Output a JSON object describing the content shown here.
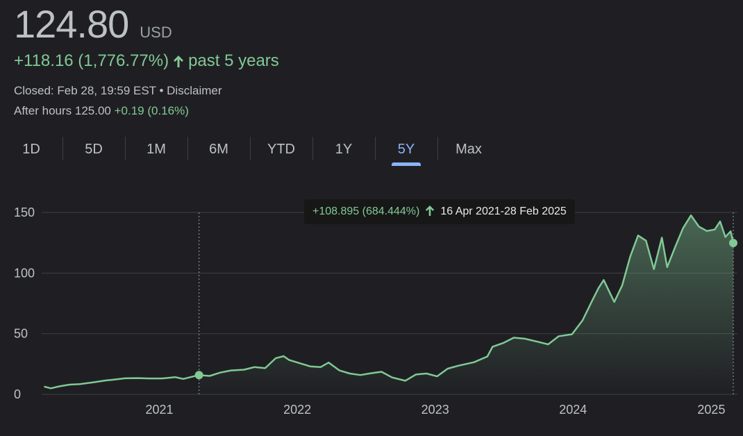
{
  "quote": {
    "price": "124.80",
    "currency": "USD",
    "change": "+118.16 (1,776.77%)",
    "change_period": "past 5 years",
    "closed_text": "Closed: Feb 28, 19:59 EST • Disclaimer",
    "after_hours_label": "After hours 125.00",
    "after_hours_change": "+0.19 (0.16%)"
  },
  "tabs": [
    {
      "label": "1D"
    },
    {
      "label": "5D"
    },
    {
      "label": "1M"
    },
    {
      "label": "6M"
    },
    {
      "label": "YTD"
    },
    {
      "label": "1Y"
    },
    {
      "label": "5Y",
      "active": true
    },
    {
      "label": "Max"
    }
  ],
  "tooltip": {
    "change": "+108.895 (684.444%)",
    "range": "16 Apr 2021-28 Feb 2025"
  },
  "colors": {
    "positive": "#81c995",
    "line": "#81c995",
    "active_tab": "#8ab4f8",
    "background": "#1f1f23"
  },
  "chart_data": {
    "type": "area",
    "title": "",
    "xlabel": "",
    "ylabel": "",
    "ylim": [
      0,
      150
    ],
    "yticks": [
      0,
      50,
      100,
      150
    ],
    "xticks": [
      "2021",
      "2022",
      "2023",
      "2024",
      "2025"
    ],
    "grid": true,
    "x_range": [
      "2020-03-01",
      "2025-02-28"
    ],
    "selection": {
      "start": "2021-04-16",
      "end": "2025-02-28",
      "start_value": 15.9,
      "end_value": 124.8
    },
    "series": [
      {
        "points": [
          [
            "2020-03-02",
            6.4
          ],
          [
            "2020-03-20",
            5.0
          ],
          [
            "2020-04-10",
            6.5
          ],
          [
            "2020-05-08",
            8.0
          ],
          [
            "2020-06-05",
            8.5
          ],
          [
            "2020-07-03",
            9.6
          ],
          [
            "2020-08-14",
            11.5
          ],
          [
            "2020-09-04",
            12.2
          ],
          [
            "2020-10-02",
            13.2
          ],
          [
            "2020-11-06",
            13.4
          ],
          [
            "2020-12-04",
            13.1
          ],
          [
            "2021-01-08",
            13.1
          ],
          [
            "2021-02-12",
            14.2
          ],
          [
            "2021-03-05",
            12.7
          ],
          [
            "2021-04-16",
            15.9
          ],
          [
            "2021-05-14",
            15.2
          ],
          [
            "2021-06-11",
            17.9
          ],
          [
            "2021-07-09",
            19.7
          ],
          [
            "2021-08-13",
            20.3
          ],
          [
            "2021-09-10",
            22.5
          ],
          [
            "2021-10-08",
            21.6
          ],
          [
            "2021-11-05",
            29.8
          ],
          [
            "2021-11-26",
            31.5
          ],
          [
            "2021-12-10",
            28.4
          ],
          [
            "2022-01-07",
            25.7
          ],
          [
            "2022-02-04",
            23.1
          ],
          [
            "2022-03-04",
            22.5
          ],
          [
            "2022-03-25",
            26.2
          ],
          [
            "2022-04-22",
            19.8
          ],
          [
            "2022-05-20",
            17.2
          ],
          [
            "2022-06-17",
            15.9
          ],
          [
            "2022-07-15",
            17.4
          ],
          [
            "2022-08-12",
            18.6
          ],
          [
            "2022-09-09",
            13.9
          ],
          [
            "2022-10-14",
            11.2
          ],
          [
            "2022-11-11",
            16.4
          ],
          [
            "2022-12-09",
            17.2
          ],
          [
            "2023-01-06",
            14.8
          ],
          [
            "2023-02-03",
            21.2
          ],
          [
            "2023-03-03",
            23.6
          ],
          [
            "2023-04-14",
            26.5
          ],
          [
            "2023-05-19",
            31.2
          ],
          [
            "2023-06-02",
            39.3
          ],
          [
            "2023-06-30",
            42.3
          ],
          [
            "2023-07-28",
            46.7
          ],
          [
            "2023-08-25",
            46.0
          ],
          [
            "2023-09-29",
            43.4
          ],
          [
            "2023-10-27",
            41.2
          ],
          [
            "2023-11-24",
            47.9
          ],
          [
            "2023-12-29",
            49.5
          ],
          [
            "2024-01-26",
            61.0
          ],
          [
            "2024-02-23",
            78.8
          ],
          [
            "2024-03-08",
            87.5
          ],
          [
            "2024-03-22",
            94.3
          ],
          [
            "2024-04-19",
            76.2
          ],
          [
            "2024-05-10",
            89.8
          ],
          [
            "2024-05-31",
            113.5
          ],
          [
            "2024-06-21",
            131.0
          ],
          [
            "2024-07-12",
            126.7
          ],
          [
            "2024-08-02",
            103.2
          ],
          [
            "2024-08-23",
            129.2
          ],
          [
            "2024-09-06",
            104.9
          ],
          [
            "2024-09-27",
            121.4
          ],
          [
            "2024-10-18",
            137.0
          ],
          [
            "2024-11-08",
            147.6
          ],
          [
            "2024-11-29",
            138.3
          ],
          [
            "2024-12-20",
            134.7
          ],
          [
            "2025-01-10",
            135.9
          ],
          [
            "2025-01-24",
            142.6
          ],
          [
            "2025-02-07",
            129.8
          ],
          [
            "2025-02-21",
            134.4
          ],
          [
            "2025-02-28",
            124.8
          ]
        ]
      }
    ]
  }
}
